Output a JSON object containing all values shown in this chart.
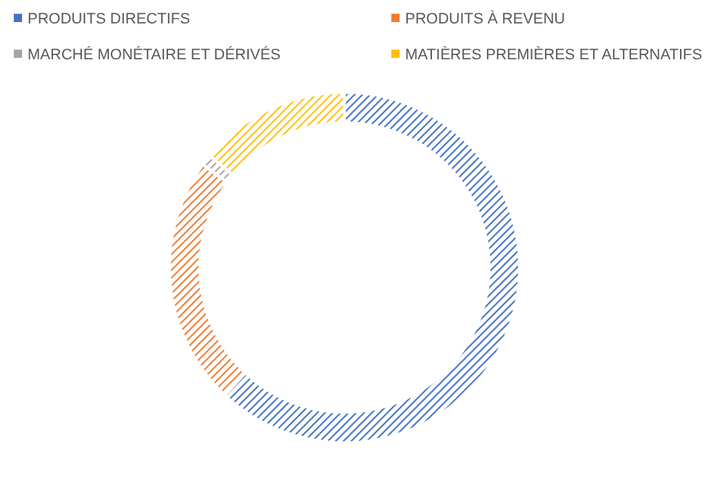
{
  "chart_data": {
    "type": "donut",
    "categories": [
      "PRODUITS DIRECTIFS",
      "PRODUITS À REVENU",
      "MARCHÉ MONÉTAIRE ET DÉRIVÉS",
      "MATIÈRES PREMIÈRES ET ALTERNATIFS"
    ],
    "values": [
      62,
      23,
      1,
      14
    ],
    "colors": [
      "#4472c4",
      "#ed7d31",
      "#a5a5a5",
      "#ffc000"
    ],
    "legend": "top"
  }
}
